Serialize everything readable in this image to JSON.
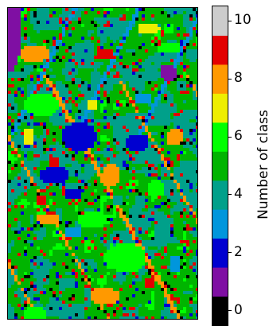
{
  "chart_data": {
    "type": "heatmap",
    "title": "",
    "xlabel": "",
    "ylabel": "",
    "colorbar": {
      "label": "Number of class",
      "range": [
        -0.5,
        10.5
      ],
      "ticks": [
        0,
        2,
        4,
        6,
        8,
        10
      ],
      "tick_labels": [
        "0",
        "2",
        "4",
        "6",
        "8",
        "10"
      ],
      "classes": [
        0,
        1,
        2,
        3,
        4,
        5,
        6,
        7,
        8,
        9,
        10
      ],
      "colors": [
        "#000000",
        "#7f0fa3",
        "#0000d0",
        "#0096dc",
        "#00a08a",
        "#00b400",
        "#00ff00",
        "#eeee00",
        "#ff9900",
        "#e30000",
        "#cccccc"
      ]
    },
    "axes_visible": false,
    "grid": false,
    "dominant_classes": [
      5,
      6,
      8,
      4,
      7,
      9,
      2,
      3
    ]
  }
}
